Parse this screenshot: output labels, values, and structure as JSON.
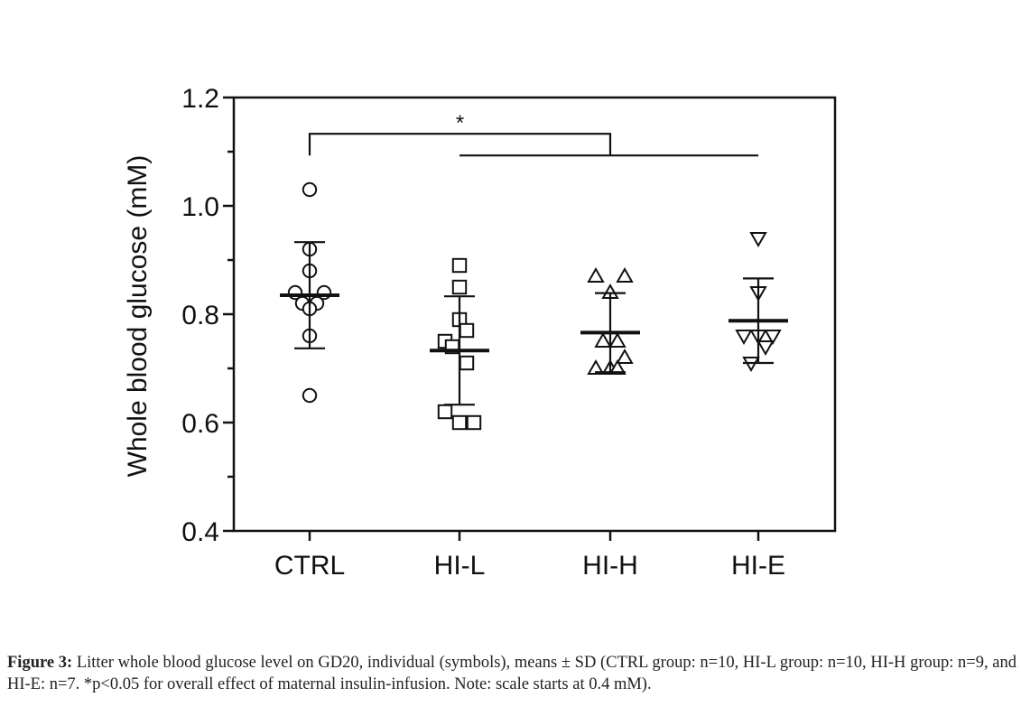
{
  "chart_data": {
    "type": "scatter",
    "subtype": "dot-plot-mean-sd",
    "ylabel": "Whole blood glucose (mM)",
    "xlabel": "",
    "ylim": [
      0.4,
      1.2
    ],
    "y_ticks": [
      "0.4",
      "0.6",
      "0.8",
      "1.0",
      "1.2"
    ],
    "y_minor_step": 0.1,
    "categories": [
      "CTRL",
      "HI-L",
      "HI-H",
      "HI-E"
    ],
    "groups": [
      {
        "name": "CTRL",
        "marker": "circle",
        "mean": 0.835,
        "sd": 0.098,
        "points": [
          {
            "dx": 0,
            "y": 1.03
          },
          {
            "dx": 0,
            "y": 0.92
          },
          {
            "dx": 0,
            "y": 0.88
          },
          {
            "dx": -1,
            "y": 0.84
          },
          {
            "dx": 1,
            "y": 0.84
          },
          {
            "dx": -0.5,
            "y": 0.82
          },
          {
            "dx": 0.5,
            "y": 0.82
          },
          {
            "dx": 0,
            "y": 0.81
          },
          {
            "dx": 0,
            "y": 0.76
          },
          {
            "dx": 0,
            "y": 0.65
          }
        ]
      },
      {
        "name": "HI-L",
        "marker": "square",
        "mean": 0.733,
        "sd": 0.1,
        "points": [
          {
            "dx": 0,
            "y": 0.89
          },
          {
            "dx": 0,
            "y": 0.85
          },
          {
            "dx": 0,
            "y": 0.79
          },
          {
            "dx": 0.5,
            "y": 0.77
          },
          {
            "dx": -1,
            "y": 0.75
          },
          {
            "dx": -0.5,
            "y": 0.74
          },
          {
            "dx": 0.5,
            "y": 0.71
          },
          {
            "dx": -1,
            "y": 0.62
          },
          {
            "dx": 0,
            "y": 0.6
          },
          {
            "dx": 1,
            "y": 0.6
          }
        ]
      },
      {
        "name": "HI-H",
        "marker": "triangle-up",
        "mean": 0.766,
        "sd": 0.073,
        "points": [
          {
            "dx": -1,
            "y": 0.87
          },
          {
            "dx": 1,
            "y": 0.87
          },
          {
            "dx": 0,
            "y": 0.84
          },
          {
            "dx": -0.5,
            "y": 0.75
          },
          {
            "dx": 0.5,
            "y": 0.75
          },
          {
            "dx": 1,
            "y": 0.72
          },
          {
            "dx": -1,
            "y": 0.7
          },
          {
            "dx": 0,
            "y": 0.7
          },
          {
            "dx": 0.5,
            "y": 0.7
          }
        ]
      },
      {
        "name": "HI-E",
        "marker": "triangle-down",
        "mean": 0.788,
        "sd": 0.078,
        "points": [
          {
            "dx": 0,
            "y": 0.94
          },
          {
            "dx": 0,
            "y": 0.84
          },
          {
            "dx": -1,
            "y": 0.76
          },
          {
            "dx": 0,
            "y": 0.76
          },
          {
            "dx": 1,
            "y": 0.76
          },
          {
            "dx": 0.5,
            "y": 0.74
          },
          {
            "dx": -0.5,
            "y": 0.71
          }
        ]
      }
    ],
    "annotations": [
      {
        "type": "significance-bracket",
        "label": "*",
        "from": "CTRL",
        "to_group": [
          "HI-L",
          "HI-H",
          "HI-E"
        ],
        "y_upper": 1.133,
        "y_lower": 1.093
      }
    ],
    "grid": false,
    "legend": "none"
  },
  "caption": {
    "lead": "Figure 3:",
    "text": " Litter whole blood glucose level on GD20, individual (symbols), means ± SD (CTRL group: n=10, HI-L group: n=10, HI-H group: n=9, and HI-E: n=7. *p<0.05 for overall effect of maternal insulin-infusion. Note: scale starts at 0.4 mM)."
  }
}
